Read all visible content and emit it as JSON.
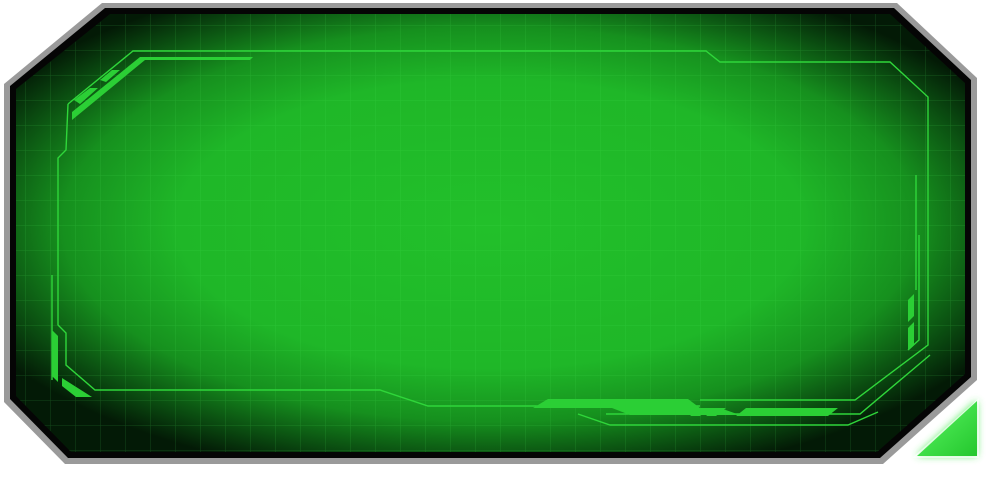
{
  "colors": {
    "frame_outer": "#9a9a9a",
    "frame_inner": "#050505",
    "screen_center": "#22c02a",
    "screen_edge": "#03200a",
    "hud_line": "#2fd63a",
    "grid_line": "#4ee85a",
    "corner_button": "#35e83e"
  },
  "icons": {
    "corner_button": "triangle-corner-icon"
  }
}
